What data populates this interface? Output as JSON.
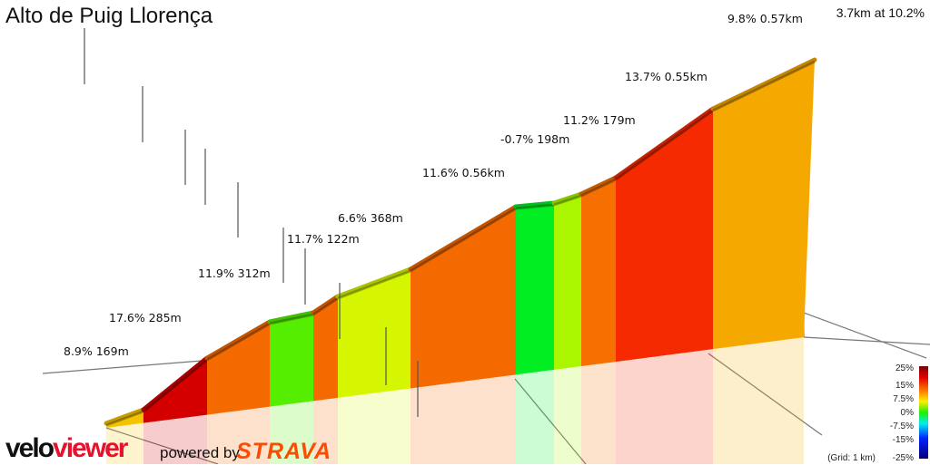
{
  "title": "Alto de Puig Llorença",
  "summary": "3.7km at 10.2%",
  "chart_data": {
    "type": "area",
    "title": "Alto de Puig Llorença",
    "segments": [
      {
        "label": "8.9% 169m",
        "gradient": 8.9,
        "distance_m": 169,
        "color": "#f5c400"
      },
      {
        "label": "17.6% 285m",
        "gradient": 17.6,
        "distance_m": 285,
        "color": "#d40000"
      },
      {
        "label": "11.9% 312m",
        "gradient": 11.9,
        "distance_m": 312,
        "color": "#f56a00"
      },
      {
        "label": "",
        "color": "#55ee00"
      },
      {
        "label": "11.7% 122m",
        "gradient": 11.7,
        "distance_m": 122,
        "color": "#f56a00"
      },
      {
        "label": "6.6% 368m",
        "gradient": 6.6,
        "distance_m": 368,
        "color": "#d6f500"
      },
      {
        "label": "11.6% 0.56km",
        "gradient": 11.6,
        "distance_m": 560,
        "color": "#f56a00"
      },
      {
        "label": "-0.7% 198m",
        "gradient": -0.7,
        "distance_m": 198,
        "color": "#00ee22"
      },
      {
        "label": "",
        "color": "#aaf500"
      },
      {
        "label": "11.2% 179m",
        "gradient": 11.2,
        "distance_m": 179,
        "color": "#f57000"
      },
      {
        "label": "13.7% 0.55km",
        "gradient": 13.7,
        "distance_m": 550,
        "color": "#f52a00"
      },
      {
        "label": "9.8% 0.57km",
        "gradient": 9.8,
        "distance_m": 570,
        "color": "#f5a800"
      }
    ],
    "legend": {
      "ticks": [
        "25%",
        "15%",
        "7.5%",
        "0%",
        "-7.5%",
        "-15%",
        "-25%"
      ],
      "grid_note": "(Grid: 1 km)"
    }
  },
  "branding": {
    "logo_a": "velo",
    "logo_b": "viewer",
    "powered": "powered by",
    "strava": "STRAVA"
  }
}
